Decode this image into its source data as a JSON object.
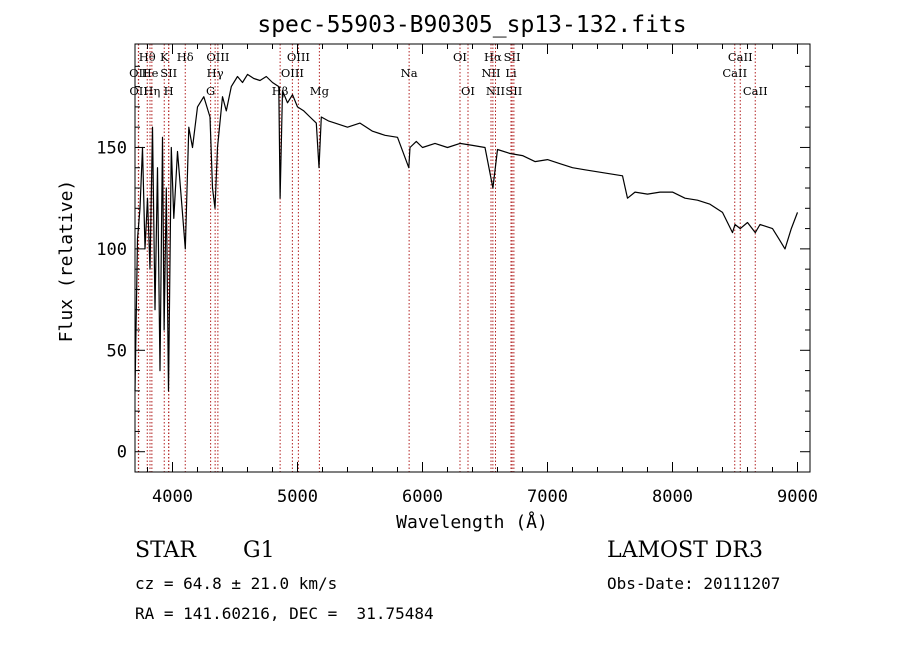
{
  "chart_data": {
    "type": "line",
    "title": "spec-55903-B90305_sp13-132.fits",
    "xlabel": "Wavelength (Å)",
    "ylabel": "Flux (relative)",
    "xlim": [
      3700,
      9100
    ],
    "ylim": [
      -10,
      201
    ],
    "xticks": [
      4000,
      5000,
      6000,
      7000,
      8000,
      9000
    ],
    "yticks": [
      0,
      50,
      100,
      150
    ],
    "series": [
      {
        "name": "spectrum",
        "x": [
          3700,
          3720,
          3740,
          3760,
          3780,
          3800,
          3820,
          3840,
          3860,
          3880,
          3900,
          3920,
          3933,
          3950,
          3968,
          3990,
          4010,
          4040,
          4070,
          4102,
          4130,
          4160,
          4200,
          4250,
          4300,
          4320,
          4340,
          4360,
          4400,
          4430,
          4470,
          4520,
          4560,
          4600,
          4650,
          4700,
          4750,
          4800,
          4850,
          4861,
          4880,
          4920,
          4960,
          5000,
          5050,
          5100,
          5150,
          5172,
          5190,
          5250,
          5300,
          5400,
          5500,
          5600,
          5700,
          5800,
          5890,
          5900,
          5950,
          6000,
          6100,
          6200,
          6300,
          6400,
          6500,
          6563,
          6600,
          6700,
          6800,
          6900,
          7000,
          7100,
          7200,
          7300,
          7400,
          7500,
          7600,
          7640,
          7700,
          7800,
          7900,
          8000,
          8100,
          8200,
          8300,
          8400,
          8480,
          8500,
          8542,
          8600,
          8662,
          8700,
          8800,
          8850,
          8900,
          8950,
          9000
        ],
        "values": [
          30,
          105,
          120,
          150,
          100,
          125,
          90,
          160,
          70,
          140,
          40,
          155,
          60,
          130,
          30,
          150,
          115,
          148,
          125,
          100,
          160,
          150,
          170,
          175,
          165,
          130,
          120,
          150,
          175,
          168,
          180,
          185,
          182,
          186,
          184,
          183,
          185,
          182,
          180,
          125,
          178,
          172,
          176,
          170,
          168,
          165,
          162,
          140,
          165,
          163,
          162,
          160,
          162,
          158,
          156,
          155,
          140,
          150,
          153,
          150,
          152,
          150,
          152,
          151,
          150,
          130,
          149,
          147,
          146,
          143,
          144,
          142,
          140,
          139,
          138,
          137,
          136,
          125,
          128,
          127,
          128,
          128,
          125,
          124,
          122,
          118,
          108,
          112,
          110,
          113,
          108,
          112,
          110,
          105,
          100,
          110,
          118
        ]
      }
    ],
    "lines": [
      {
        "label": "Hθ",
        "x": 3798,
        "row": 1
      },
      {
        "label": "OII",
        "x": 3727,
        "row": 2
      },
      {
        "label": "OII",
        "x": 3729,
        "row": 3
      },
      {
        "label": "He",
        "x": 3820,
        "row": 2
      },
      {
        "label": "Hη",
        "x": 3835,
        "row": 3
      },
      {
        "label": "K",
        "x": 3934,
        "row": 1
      },
      {
        "label": "SII",
        "x": 3970,
        "row": 2
      },
      {
        "label": "H",
        "x": 3969,
        "row": 3
      },
      {
        "label": "Hδ",
        "x": 4102,
        "row": 1
      },
      {
        "label": "OIII",
        "x": 4363,
        "row": 1
      },
      {
        "label": "Hγ",
        "x": 4341,
        "row": 2
      },
      {
        "label": "G",
        "x": 4305,
        "row": 3
      },
      {
        "label": "OIII",
        "x": 5007,
        "row": 1
      },
      {
        "label": "OIII",
        "x": 4959,
        "row": 2
      },
      {
        "label": "Hβ",
        "x": 4861,
        "row": 3
      },
      {
        "label": "Mg",
        "x": 5175,
        "row": 3
      },
      {
        "label": "Na",
        "x": 5893,
        "row": 2
      },
      {
        "label": "OI",
        "x": 6300,
        "row": 1
      },
      {
        "label": "OI",
        "x": 6364,
        "row": 3
      },
      {
        "label": "Hα",
        "x": 6563,
        "row": 1
      },
      {
        "label": "SII",
        "x": 6717,
        "row": 1
      },
      {
        "label": "NII",
        "x": 6548,
        "row": 2
      },
      {
        "label": "NII",
        "x": 6584,
        "row": 3
      },
      {
        "label": "Li",
        "x": 6708,
        "row": 2
      },
      {
        "label": "SII",
        "x": 6731,
        "row": 3
      },
      {
        "label": "CaII",
        "x": 8542,
        "row": 1
      },
      {
        "label": "CaII",
        "x": 8498,
        "row": 2
      },
      {
        "label": "CaII",
        "x": 8662,
        "row": 3
      }
    ],
    "colors": {
      "spectrum": "#000000",
      "lines": "#b22222",
      "axis": "#000000"
    }
  },
  "info": {
    "object_class": "STAR",
    "subclass": "G1",
    "survey": "LAMOST DR3",
    "redshift": "cz = 64.8 ± 21.0 km/s",
    "obs_date": "Obs-Date: 20111207",
    "coords": "RA = 141.60216, DEC =  31.75484"
  }
}
